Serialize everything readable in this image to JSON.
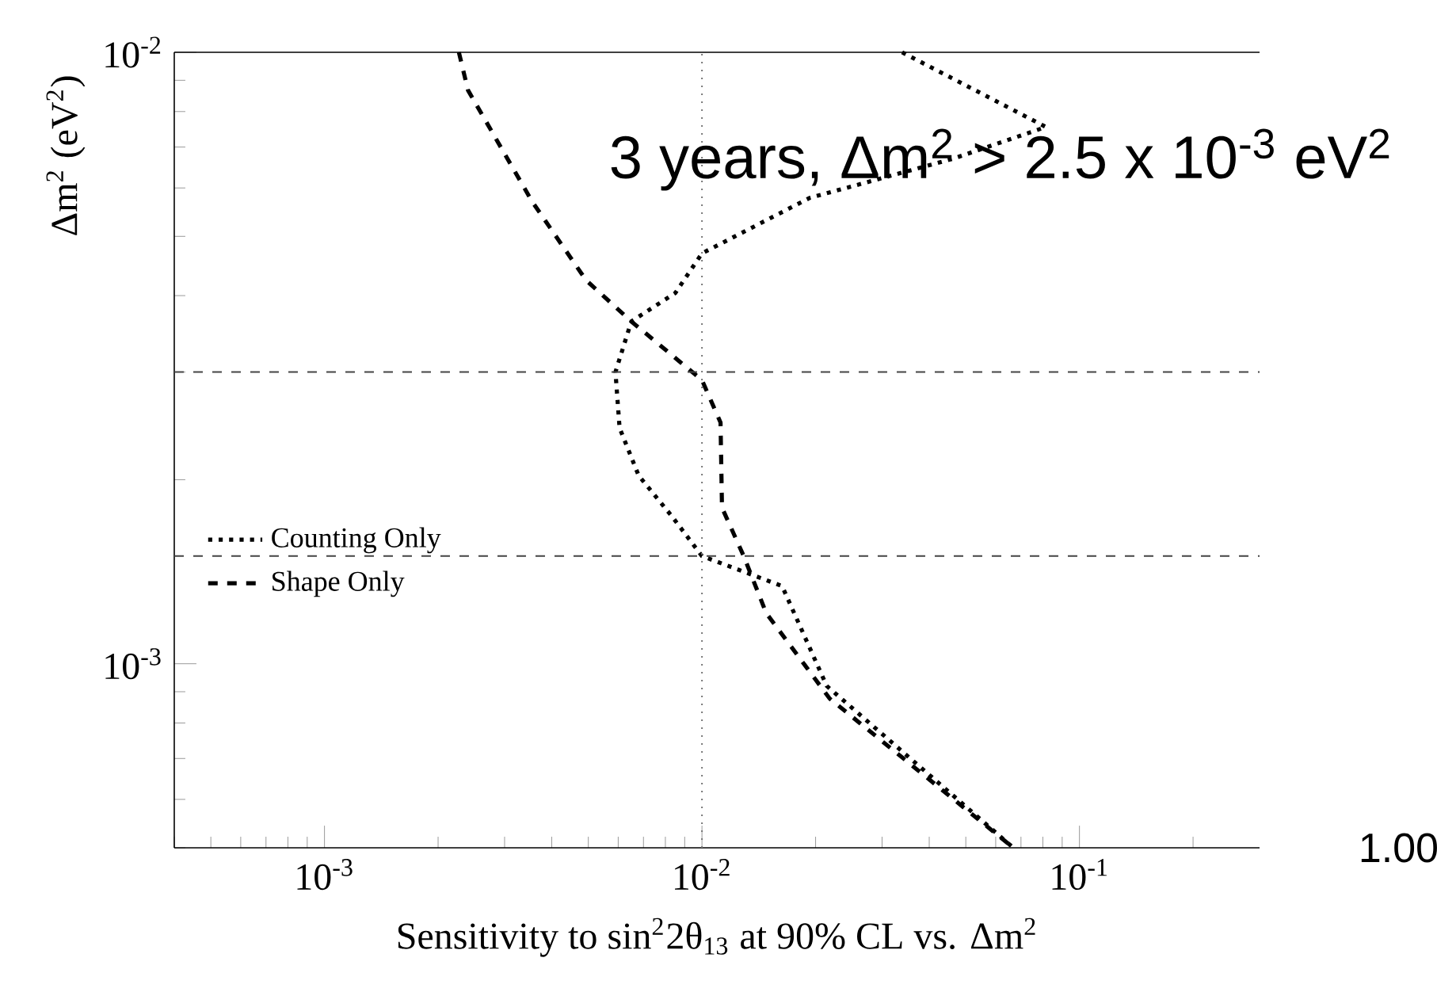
{
  "chart_data": {
    "type": "line",
    "xlabel": "Sensitivity to sin$^{2}$2θ$_{13}$ at 90% CL vs. Δm$^{2}$",
    "ylabel": "Δm$^{2}$ (eV$^{2}$)",
    "log": "xy",
    "xlim": [
      0.0004,
      0.3
    ],
    "ylim": [
      0.0005,
      0.01
    ],
    "xticks": [
      {
        "value": 0.001,
        "label": "10$^{-3}$"
      },
      {
        "value": 0.01,
        "label": "10$^{-2}$"
      },
      {
        "value": 0.1,
        "label": "10$^{-1}$"
      }
    ],
    "yticks": [
      {
        "value": 0.001,
        "label": "10$^{-3}$"
      },
      {
        "value": 0.01,
        "label": "10$^{-2}$"
      }
    ],
    "series": [
      {
        "name": "Counting Only",
        "color": "#000000",
        "line_style": "dotted",
        "x": [
          0.0339,
          0.0815,
          0.0463,
          0.0193,
          0.01,
          0.0085,
          0.0065,
          0.0059,
          0.00605,
          0.0068,
          0.00828,
          0.01,
          0.0163,
          0.0214,
          0.0668
        ],
        "values": [
          0.01,
          0.00755,
          0.0067,
          0.00578,
          0.00469,
          0.00404,
          0.00363,
          0.003,
          0.00243,
          0.00203,
          0.00175,
          0.0015,
          0.00134,
          0.00092,
          0.0005
        ]
      },
      {
        "name": "Shape Only",
        "color": "#000000",
        "line_style": "dashed",
        "x": [
          0.00227,
          0.0024,
          0.00355,
          0.00493,
          0.0065,
          0.01,
          0.0112,
          0.0113,
          0.0129,
          0.0148,
          0.0218,
          0.0668
        ],
        "values": [
          0.01,
          0.00867,
          0.0057,
          0.00424,
          0.00363,
          0.00291,
          0.00248,
          0.0018,
          0.0015,
          0.00121,
          0.000877,
          0.0005
        ]
      }
    ],
    "ref_lines": [
      {
        "axis": "y",
        "value": 0.003,
        "line_style": "dashed",
        "color": "#444444"
      },
      {
        "axis": "y",
        "value": 0.0015,
        "line_style": "dashed",
        "color": "#444444"
      },
      {
        "axis": "x",
        "value": 0.01,
        "line_style": "dotted",
        "color": "#777777"
      }
    ],
    "legend": "left",
    "annotations": [
      "3 years, Δm$^{2}$ > 2.5 x 10$^{-3}$ eV$^{2}$",
      "1.00"
    ]
  }
}
